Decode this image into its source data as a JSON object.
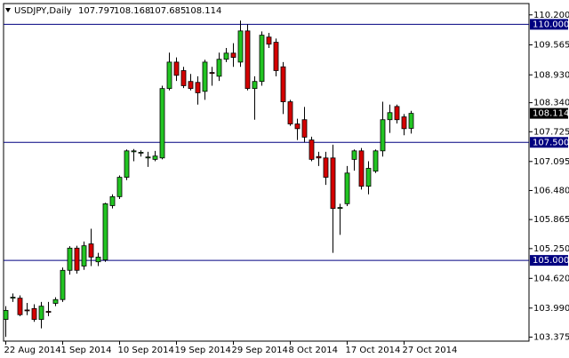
{
  "chart_data": {
    "type": "candlestick",
    "title": "USDJPY,Daily",
    "up_color": "#22c422",
    "down_color": "#d40000",
    "level_color": "#000080",
    "categories": [
      "22 Aug 2014",
      null,
      null,
      null,
      null,
      null,
      null,
      null,
      "1 Sep 2014",
      null,
      null,
      null,
      null,
      null,
      null,
      null,
      "10 Sep 2014",
      null,
      null,
      null,
      null,
      null,
      null,
      null,
      "19 Sep 2014",
      null,
      null,
      null,
      null,
      null,
      null,
      null,
      "29 Sep 2014",
      null,
      null,
      null,
      null,
      null,
      null,
      null,
      "8 Oct 2014",
      null,
      null,
      null,
      null,
      null,
      null,
      null,
      "17 Oct 2014",
      null,
      null,
      null,
      null,
      null,
      null,
      null,
      "27 Oct 2014",
      null
    ],
    "open": [
      103.75,
      104.2,
      104.2,
      103.95,
      103.98,
      103.75,
      103.92,
      104.09,
      104.17,
      104.79,
      105.26,
      104.88,
      105.35,
      104.97,
      105.01,
      106.16,
      106.35,
      106.76,
      107.3,
      107.28,
      107.17,
      107.14,
      107.17,
      108.64,
      109.2,
      109.02,
      108.79,
      108.77,
      108.58,
      108.98,
      108.9,
      109.26,
      109.39,
      109.2,
      109.86,
      108.64,
      108.79,
      109.73,
      109.62,
      109.1,
      108.36,
      107.89,
      107.98,
      107.55,
      107.2,
      107.17,
      107.17,
      106.1,
      106.2,
      107.14,
      107.32,
      106.57,
      106.89,
      107.32,
      107.98,
      108.26,
      108.04,
      107.797
    ],
    "high": [
      104.03,
      104.3,
      104.26,
      104.1,
      104.07,
      104.12,
      104.12,
      104.22,
      104.85,
      105.3,
      105.31,
      105.4,
      105.67,
      105.16,
      106.22,
      106.4,
      106.8,
      107.35,
      107.36,
      107.33,
      107.3,
      107.32,
      108.7,
      109.4,
      109.3,
      109.1,
      108.95,
      108.9,
      109.25,
      109.1,
      109.4,
      109.5,
      109.6,
      110.08,
      110.0,
      108.9,
      109.85,
      109.82,
      109.7,
      109.2,
      108.4,
      108.0,
      108.25,
      107.62,
      107.3,
      107.3,
      107.45,
      106.2,
      107.0,
      107.35,
      107.38,
      107.1,
      107.35,
      108.36,
      108.3,
      108.3,
      108.1,
      108.168
    ],
    "low": [
      103.38,
      104.12,
      103.82,
      103.84,
      103.7,
      103.56,
      103.82,
      104.03,
      104.12,
      104.7,
      104.72,
      104.8,
      104.88,
      104.88,
      104.97,
      106.1,
      106.3,
      106.7,
      107.1,
      107.2,
      106.98,
      107.1,
      107.14,
      108.6,
      108.8,
      108.65,
      108.6,
      108.3,
      108.4,
      108.7,
      108.8,
      109.2,
      109.1,
      109.1,
      108.6,
      107.98,
      108.7,
      109.5,
      108.9,
      108.1,
      107.85,
      107.55,
      107.5,
      107.1,
      107.0,
      106.6,
      105.16,
      105.54,
      106.15,
      106.9,
      106.5,
      106.4,
      106.85,
      107.2,
      107.7,
      107.9,
      107.65,
      107.685
    ],
    "close": [
      103.94,
      104.22,
      103.85,
      103.94,
      103.75,
      104.03,
      103.9,
      104.17,
      104.79,
      105.26,
      104.79,
      105.31,
      105.07,
      105.07,
      106.2,
      106.35,
      106.76,
      107.32,
      107.32,
      107.29,
      107.19,
      107.21,
      108.64,
      109.2,
      108.92,
      108.7,
      108.64,
      108.55,
      109.2,
      108.96,
      109.26,
      109.39,
      109.3,
      109.86,
      108.64,
      108.79,
      109.77,
      109.58,
      109.02,
      108.36,
      107.89,
      107.79,
      107.61,
      107.14,
      107.17,
      106.76,
      106.1,
      106.12,
      106.85,
      107.32,
      106.57,
      106.95,
      107.32,
      107.98,
      108.13,
      107.98,
      107.79,
      108.114
    ],
    "ylim": [
      103.29,
      110.44
    ],
    "yticks": [
      {
        "value": 110.2,
        "label": "110.200"
      },
      {
        "value": 109.565,
        "label": "109.565"
      },
      {
        "value": 108.93,
        "label": "108.930"
      },
      {
        "value": 108.34,
        "label": "108.340"
      },
      {
        "value": 107.725,
        "label": "107.725"
      },
      {
        "value": 107.095,
        "label": "107.095"
      },
      {
        "value": 106.48,
        "label": "106.480"
      },
      {
        "value": 105.865,
        "label": "105.865"
      },
      {
        "value": 105.25,
        "label": "105.250"
      },
      {
        "value": 104.62,
        "label": "104.620"
      },
      {
        "value": 103.99,
        "label": "103.990"
      },
      {
        "value": 103.375,
        "label": "103.375"
      }
    ],
    "levels": [
      {
        "value": 110,
        "label": "110.000"
      },
      {
        "value": 107.5,
        "label": "107.500"
      },
      {
        "value": 105,
        "label": "105.000"
      }
    ]
  }
}
